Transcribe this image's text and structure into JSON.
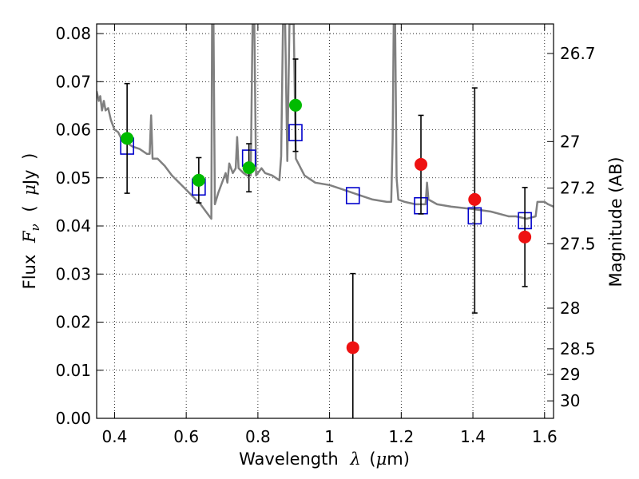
{
  "chart_data": {
    "type": "scatter",
    "xlabel": {
      "text": "Wavelength",
      "symbol": "λ",
      "unit_open": "(",
      "unit_mu": "μ",
      "unit_rest": "m)"
    },
    "ylabel": {
      "text": "Flux",
      "symbol": "F",
      "subscript": "ν",
      "unit_open": "(",
      "unit_mu": "μ",
      "unit_rest": "Jy",
      "unit_close": ")"
    },
    "y2label": "Magnitude (AB)",
    "xlim": [
      0.35,
      1.625
    ],
    "ylim": [
      0.0,
      0.082
    ],
    "grid": true,
    "x_ticks": [
      0.4,
      0.6,
      0.8,
      1.0,
      1.2,
      1.4,
      1.6
    ],
    "x_tick_labels": [
      "0.4",
      "0.6",
      "0.8",
      "1",
      "1.2",
      "1.4",
      "1.6"
    ],
    "y_ticks": [
      0.0,
      0.01,
      0.02,
      0.03,
      0.04,
      0.05,
      0.06,
      0.07,
      0.08
    ],
    "y_tick_labels": [
      "0.00",
      "0.01",
      "0.02",
      "0.03",
      "0.04",
      "0.05",
      "0.06",
      "0.07",
      "0.08"
    ],
    "y2_ticks": [
      {
        "mag": 26.7,
        "label": "26.7"
      },
      {
        "mag": 27.0,
        "label": "27"
      },
      {
        "mag": 27.2,
        "label": "27.2"
      },
      {
        "mag": 27.5,
        "label": "27.5"
      },
      {
        "mag": 28.0,
        "label": "28"
      },
      {
        "mag": 28.5,
        "label": "28.5"
      },
      {
        "mag": 29.0,
        "label": "29"
      },
      {
        "mag": 30.0,
        "label": "30"
      }
    ],
    "colors": {
      "green": "#00bb00",
      "red": "#ee1111",
      "model_box": "#0000cc",
      "sed": "#808080",
      "errbar": "#000000"
    },
    "series": [
      {
        "kind": "points_green",
        "points": [
          {
            "x": 0.435,
            "y": 0.0582,
            "ylo": 0.0468,
            "yhi": 0.0696
          },
          {
            "x": 0.635,
            "y": 0.0495,
            "ylo": 0.0448,
            "yhi": 0.0542
          },
          {
            "x": 0.775,
            "y": 0.0521,
            "ylo": 0.0471,
            "yhi": 0.0571
          },
          {
            "x": 0.905,
            "y": 0.0651,
            "ylo": 0.0555,
            "yhi": 0.0747
          }
        ]
      },
      {
        "kind": "points_red",
        "points": [
          {
            "x": 1.065,
            "y": 0.0147,
            "ylo": 0.0,
            "yhi": 0.0301
          },
          {
            "x": 1.255,
            "y": 0.0528,
            "ylo": 0.0425,
            "yhi": 0.063
          },
          {
            "x": 1.405,
            "y": 0.0455,
            "ylo": 0.0219,
            "yhi": 0.0687
          },
          {
            "x": 1.545,
            "y": 0.0377,
            "ylo": 0.0274,
            "yhi": 0.048
          }
        ]
      },
      {
        "kind": "model_boxes",
        "points": [
          {
            "x": 0.435,
            "y": 0.0566
          },
          {
            "x": 0.635,
            "y": 0.0481
          },
          {
            "x": 0.775,
            "y": 0.0541
          },
          {
            "x": 0.905,
            "y": 0.0594
          },
          {
            "x": 1.065,
            "y": 0.0463
          },
          {
            "x": 1.255,
            "y": 0.0442
          },
          {
            "x": 1.405,
            "y": 0.0421
          },
          {
            "x": 1.545,
            "y": 0.0411
          }
        ]
      },
      {
        "kind": "sed_line",
        "points": [
          [
            0.35,
            0.068
          ],
          [
            0.356,
            0.066
          ],
          [
            0.36,
            0.067
          ],
          [
            0.365,
            0.064
          ],
          [
            0.37,
            0.066
          ],
          [
            0.375,
            0.064
          ],
          [
            0.382,
            0.0645
          ],
          [
            0.39,
            0.062
          ],
          [
            0.4,
            0.06
          ],
          [
            0.41,
            0.0595
          ],
          [
            0.42,
            0.058
          ],
          [
            0.43,
            0.0575
          ],
          [
            0.44,
            0.057
          ],
          [
            0.45,
            0.0565
          ],
          [
            0.47,
            0.056
          ],
          [
            0.49,
            0.055
          ],
          [
            0.498,
            0.055
          ],
          [
            0.502,
            0.063
          ],
          [
            0.506,
            0.054
          ],
          [
            0.52,
            0.054
          ],
          [
            0.54,
            0.0525
          ],
          [
            0.56,
            0.0505
          ],
          [
            0.58,
            0.049
          ],
          [
            0.6,
            0.0475
          ],
          [
            0.62,
            0.046
          ],
          [
            0.64,
            0.0445
          ],
          [
            0.655,
            0.043
          ],
          [
            0.665,
            0.042
          ],
          [
            0.67,
            0.0415
          ],
          [
            0.672,
            0.082
          ],
          [
            0.676,
            0.082
          ],
          [
            0.68,
            0.0445
          ],
          [
            0.69,
            0.047
          ],
          [
            0.7,
            0.049
          ],
          [
            0.71,
            0.051
          ],
          [
            0.715,
            0.049
          ],
          [
            0.72,
            0.053
          ],
          [
            0.73,
            0.051
          ],
          [
            0.738,
            0.052
          ],
          [
            0.742,
            0.0585
          ],
          [
            0.746,
            0.052
          ],
          [
            0.76,
            0.051
          ],
          [
            0.77,
            0.0505
          ],
          [
            0.78,
            0.0505
          ],
          [
            0.785,
            0.082
          ],
          [
            0.79,
            0.082
          ],
          [
            0.795,
            0.0505
          ],
          [
            0.8,
            0.051
          ],
          [
            0.81,
            0.052
          ],
          [
            0.82,
            0.051
          ],
          [
            0.84,
            0.0505
          ],
          [
            0.86,
            0.0495
          ],
          [
            0.865,
            0.0545
          ],
          [
            0.87,
            0.082
          ],
          [
            0.876,
            0.082
          ],
          [
            0.882,
            0.0535
          ],
          [
            0.888,
            0.082
          ],
          [
            0.894,
            0.082
          ],
          [
            0.9,
            0.082
          ],
          [
            0.906,
            0.054
          ],
          [
            0.93,
            0.0505
          ],
          [
            0.96,
            0.049
          ],
          [
            1.0,
            0.0485
          ],
          [
            1.04,
            0.0475
          ],
          [
            1.08,
            0.0465
          ],
          [
            1.12,
            0.0455
          ],
          [
            1.16,
            0.045
          ],
          [
            1.172,
            0.045
          ],
          [
            1.176,
            0.058
          ],
          [
            1.179,
            0.082
          ],
          [
            1.183,
            0.082
          ],
          [
            1.187,
            0.05
          ],
          [
            1.192,
            0.0455
          ],
          [
            1.21,
            0.045
          ],
          [
            1.24,
            0.0445
          ],
          [
            1.26,
            0.0445
          ],
          [
            1.268,
            0.0445
          ],
          [
            1.272,
            0.049
          ],
          [
            1.276,
            0.0455
          ],
          [
            1.3,
            0.0445
          ],
          [
            1.34,
            0.044
          ],
          [
            1.4,
            0.0435
          ],
          [
            1.45,
            0.043
          ],
          [
            1.5,
            0.042
          ],
          [
            1.52,
            0.042
          ],
          [
            1.55,
            0.0415
          ],
          [
            1.575,
            0.042
          ],
          [
            1.58,
            0.045
          ],
          [
            1.6,
            0.045
          ],
          [
            1.61,
            0.0445
          ],
          [
            1.625,
            0.044
          ]
        ]
      }
    ]
  }
}
